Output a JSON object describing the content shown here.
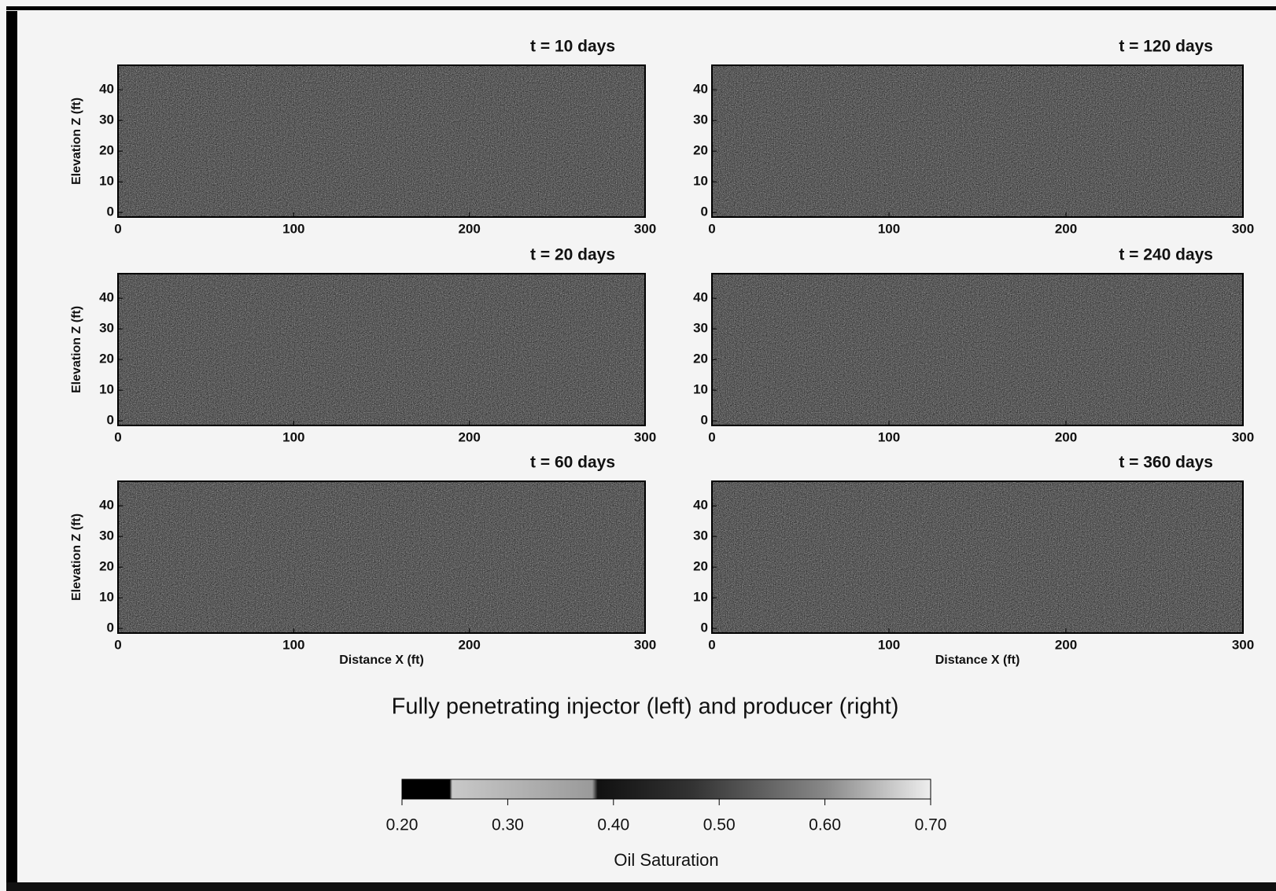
{
  "chart_data": [
    {
      "type": "heatmap",
      "title": "t = 10 days",
      "ylabel": "Elevation Z (ft)",
      "xlim": [
        0,
        300
      ],
      "ylim": [
        -1.5,
        48
      ],
      "xticks": [
        0,
        100,
        200,
        300
      ],
      "yticks": [
        0,
        10,
        20,
        30,
        40
      ]
    },
    {
      "type": "heatmap",
      "title": "t = 120 days",
      "xlim": [
        0,
        300
      ],
      "ylim": [
        -1.5,
        48
      ],
      "xticks": [
        0,
        100,
        200,
        300
      ],
      "yticks": [
        0,
        10,
        20,
        30,
        40
      ]
    },
    {
      "type": "heatmap",
      "title": "t = 20 days",
      "ylabel": "Elevation Z (ft)",
      "xlim": [
        0,
        300
      ],
      "ylim": [
        -1.5,
        48
      ],
      "xticks": [
        0,
        100,
        200,
        300
      ],
      "yticks": [
        0,
        10,
        20,
        30,
        40
      ]
    },
    {
      "type": "heatmap",
      "title": "t = 240 days",
      "xlim": [
        0,
        300
      ],
      "ylim": [
        -1.5,
        48
      ],
      "xticks": [
        0,
        100,
        200,
        300
      ],
      "yticks": [
        0,
        10,
        20,
        30,
        40
      ]
    },
    {
      "type": "heatmap",
      "title": "t = 60 days",
      "ylabel": "Elevation Z (ft)",
      "xlabel": "Distance X (ft)",
      "xlim": [
        0,
        300
      ],
      "ylim": [
        -1.5,
        48
      ],
      "xticks": [
        0,
        100,
        200,
        300
      ],
      "yticks": [
        0,
        10,
        20,
        30,
        40
      ]
    },
    {
      "type": "heatmap",
      "title": "t = 360 days",
      "xlabel": "Distance X (ft)",
      "xlim": [
        0,
        300
      ],
      "ylim": [
        -1.5,
        48
      ],
      "xticks": [
        0,
        100,
        200,
        300
      ],
      "yticks": [
        0,
        10,
        20,
        30,
        40
      ]
    }
  ],
  "caption": "Fully penetrating injector (left) and producer (right)",
  "colorbar": {
    "label": "Oil Saturation",
    "clim": [
      0.2,
      0.7
    ],
    "ticks": [
      {
        "value": 0.2,
        "label": "0.20"
      },
      {
        "value": 0.3,
        "label": "0.30"
      },
      {
        "value": 0.4,
        "label": "0.40"
      },
      {
        "value": 0.5,
        "label": "0.50"
      },
      {
        "value": 0.6,
        "label": "0.60"
      },
      {
        "value": 0.7,
        "label": "0.70"
      }
    ]
  }
}
